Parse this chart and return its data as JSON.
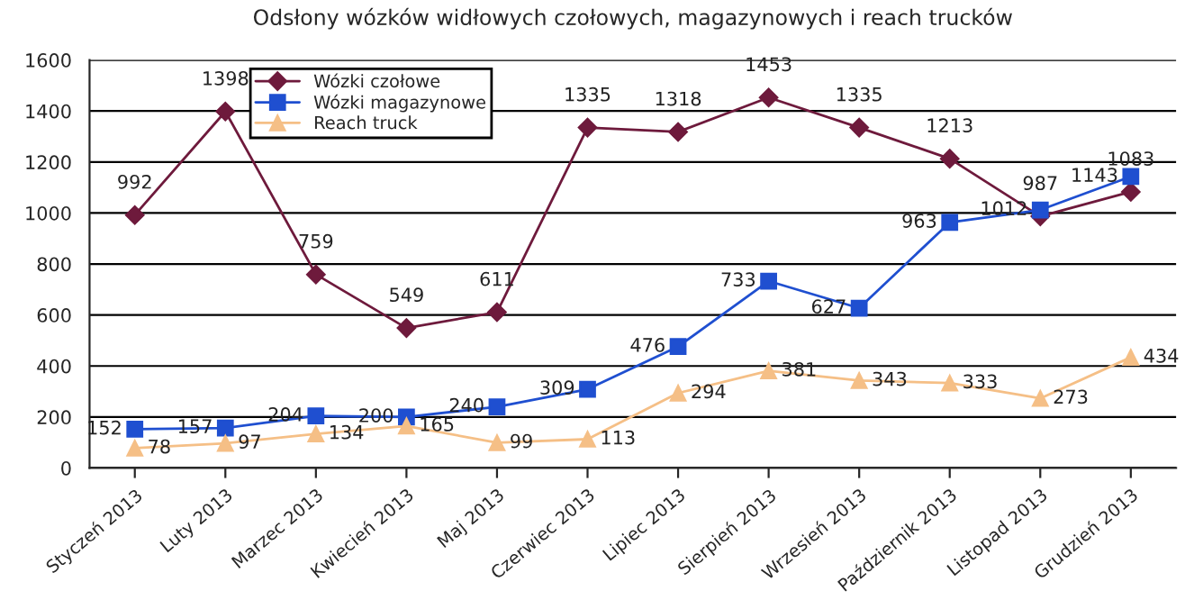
{
  "chart_data": {
    "type": "line",
    "title": "Odsłony wózków widłowych czołowych, magazynowych i reach trucków",
    "categories": [
      "Styczeń 2013",
      "Luty 2013",
      "Marzec 2013",
      "Kwiecień 2013",
      "Maj 2013",
      "Czerwiec 2013",
      "Lipiec 2013",
      "Sierpień 2013",
      "Wrzesień 2013",
      "Październik 2013",
      "Listopad 2013",
      "Grudzień 2013"
    ],
    "series": [
      {
        "name": "Wózki czołowe",
        "color": "#6e1a3c",
        "marker": "diamond",
        "values": [
          992,
          1398,
          759,
          549,
          611,
          1335,
          1318,
          1453,
          1335,
          1213,
          987,
          1083
        ]
      },
      {
        "name": "Wózki magazynowe",
        "color": "#1f4fd0",
        "marker": "square",
        "values": [
          152,
          157,
          204,
          200,
          240,
          309,
          476,
          733,
          627,
          963,
          1012,
          1143
        ]
      },
      {
        "name": "Reach truck",
        "color": "#f5bf86",
        "marker": "triangle",
        "values": [
          78,
          97,
          134,
          165,
          99,
          113,
          294,
          381,
          343,
          333,
          273,
          434
        ]
      }
    ],
    "ylim": [
      0,
      1600
    ],
    "yticks": [
      0,
      200,
      400,
      600,
      800,
      1000,
      1200,
      1400,
      1600
    ],
    "grid": "y",
    "legend": "top left",
    "data_labels": true
  }
}
